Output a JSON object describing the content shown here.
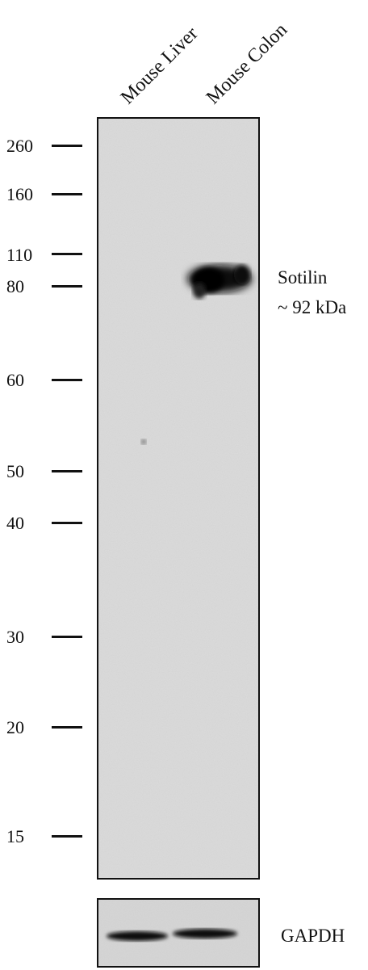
{
  "lanes": [
    "Mouse Liver",
    "Mouse Colon"
  ],
  "markers": [
    "260",
    "160",
    "110",
    "80",
    "60",
    "50",
    "40",
    "30",
    "20",
    "15"
  ],
  "band": {
    "name": "Sotilin",
    "size": "~ 92 kDa"
  },
  "loading_control": "GAPDH",
  "colors": {
    "membrane": "#d8d8d8",
    "band": "#0b0b0b",
    "frame": "#111111"
  }
}
